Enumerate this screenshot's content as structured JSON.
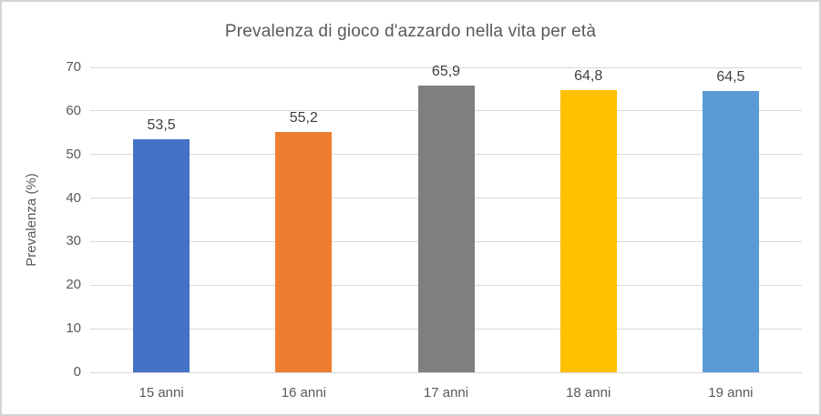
{
  "chart_data": {
    "type": "bar",
    "title": "Prevalenza di gioco d'azzardo nella vita per età",
    "xlabel": "",
    "ylabel": "Prevalenza (%)",
    "categories": [
      "15 anni",
      "16 anni",
      "17 anni",
      "18 anni",
      "19 anni"
    ],
    "values": [
      53.5,
      55.2,
      65.9,
      64.8,
      64.5
    ],
    "value_labels": [
      "53,5",
      "55,2",
      "65,9",
      "64,8",
      "64,5"
    ],
    "bar_colors": [
      "#4472C4",
      "#ED7D31",
      "#7F7F7F",
      "#FFC000",
      "#5B9BD5"
    ],
    "ylim": [
      0,
      70
    ],
    "yticks": [
      0,
      10,
      20,
      30,
      40,
      50,
      60,
      70
    ],
    "grid": true,
    "legend": false
  },
  "colors": {
    "grid": "#d9d9d9",
    "axis_text": "#595959",
    "title_text": "#595959",
    "data_label_text": "#404040",
    "frame_border": "#d5d5d5"
  }
}
